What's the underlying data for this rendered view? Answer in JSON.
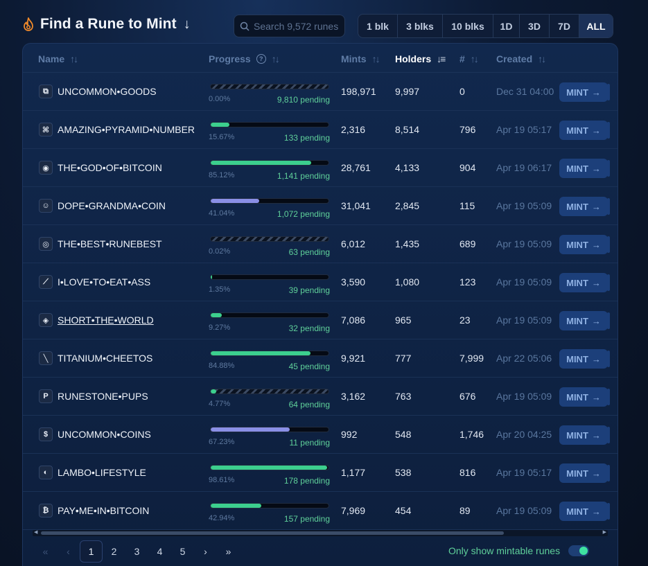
{
  "header": {
    "title": "Find a Rune to Mint",
    "title_arrow": "↓",
    "search_placeholder": "Search 9,572 runes",
    "filters": [
      "1 blk",
      "3 blks",
      "10 blks",
      "1D",
      "3D",
      "7D",
      "ALL"
    ],
    "active_filter": "ALL"
  },
  "columns": {
    "name": "Name",
    "progress": "Progress",
    "mints": "Mints",
    "holders": "Holders",
    "number": "#",
    "created": "Created",
    "sorted_by": "Holders"
  },
  "colors": {
    "accent_green": "#3ccf8e",
    "accent_purple": "#8a8fe6",
    "mint_button": "#1c3f7a",
    "pending_text": "#5fd09a"
  },
  "mint_label": "MINT",
  "rows": [
    {
      "icon": "goods-icon",
      "glyph": "⧉",
      "name": "UNCOMMON•GOODS",
      "progress": 0.0,
      "pct": "0.00%",
      "pending": "9,810 pending",
      "mints": "198,971",
      "holders": "9,997",
      "number": "0",
      "created": "Dec 31 04:00",
      "bar": "striped"
    },
    {
      "icon": "pyramid-icon",
      "glyph": "⌘",
      "name": "AMAZING•PYRAMID•NUMBER",
      "progress": 15.67,
      "pct": "15.67%",
      "pending": "133 pending",
      "mints": "2,316",
      "holders": "8,514",
      "number": "796",
      "created": "Apr 19 05:17",
      "bar": "green"
    },
    {
      "icon": "eye-icon",
      "glyph": "◉",
      "name": "THE•GOD•OF•BITCOIN",
      "progress": 85.12,
      "pct": "85.12%",
      "pending": "1,141 pending",
      "mints": "28,761",
      "holders": "4,133",
      "number": "904",
      "created": "Apr 19 06:17",
      "bar": "green"
    },
    {
      "icon": "grandma-icon",
      "glyph": "☺",
      "name": "DOPE•GRANDMA•COIN",
      "progress": 41.04,
      "pct": "41.04%",
      "pending": "1,072 pending",
      "mints": "31,041",
      "holders": "2,845",
      "number": "115",
      "created": "Apr 19 05:09",
      "bar": "purple"
    },
    {
      "icon": "target-icon",
      "glyph": "◎",
      "name": "THE•BEST•RUNEBEST",
      "progress": 0.02,
      "pct": "0.02%",
      "pending": "63 pending",
      "mints": "6,012",
      "holders": "1,435",
      "number": "689",
      "created": "Apr 19 05:09",
      "bar": "striped"
    },
    {
      "icon": "feather-icon",
      "glyph": "⟋",
      "name": "I•LOVE•TO•EAT•ASS",
      "progress": 1.35,
      "pct": "1.35%",
      "pending": "39 pending",
      "mints": "3,590",
      "holders": "1,080",
      "number": "123",
      "created": "Apr 19 05:09",
      "bar": "green"
    },
    {
      "icon": "red-eye-icon",
      "glyph": "◈",
      "name": "SHORT•THE•WORLD",
      "progress": 9.27,
      "pct": "9.27%",
      "pending": "32 pending",
      "mints": "7,086",
      "holders": "965",
      "number": "23",
      "created": "Apr 19 05:09",
      "bar": "green",
      "link": true
    },
    {
      "icon": "cheeto-icon",
      "glyph": "╲",
      "name": "TITANIUM•CHEETOS",
      "progress": 84.88,
      "pct": "84.88%",
      "pending": "45 pending",
      "mints": "9,921",
      "holders": "777",
      "number": "7,999",
      "created": "Apr 22 05:06",
      "bar": "green"
    },
    {
      "icon": "letter-p-icon",
      "glyph": "P",
      "name": "RUNESTONE•PUPS",
      "progress": 4.77,
      "pct": "4.77%",
      "pending": "64 pending",
      "mints": "3,162",
      "holders": "763",
      "number": "676",
      "created": "Apr 19 05:09",
      "bar": "striped"
    },
    {
      "icon": "dollar-icon",
      "glyph": "$",
      "name": "UNCOMMON•COINS",
      "progress": 67.23,
      "pct": "67.23%",
      "pending": "11 pending",
      "mints": "992",
      "holders": "548",
      "number": "1,746",
      "created": "Apr 20 04:25",
      "bar": "purple"
    },
    {
      "icon": "money-bag-icon",
      "glyph": "◐",
      "name": "LAMBO•LIFESTYLE",
      "progress": 98.61,
      "pct": "98.61%",
      "pending": "178 pending",
      "mints": "1,177",
      "holders": "538",
      "number": "816",
      "created": "Apr 19 05:17",
      "bar": "green"
    },
    {
      "icon": "bitcoin-icon",
      "glyph": "₿",
      "name": "PAY•ME•IN•BITCOIN",
      "progress": 42.94,
      "pct": "42.94%",
      "pending": "157 pending",
      "mints": "7,969",
      "holders": "454",
      "number": "89",
      "created": "Apr 19 05:09",
      "bar": "green"
    }
  ],
  "pagination": {
    "first": "«",
    "prev": "‹",
    "pages": [
      "1",
      "2",
      "3",
      "4",
      "5"
    ],
    "current": "1",
    "next": "›",
    "last": "»"
  },
  "toggle": {
    "label": "Only show mintable runes",
    "enabled": true
  }
}
